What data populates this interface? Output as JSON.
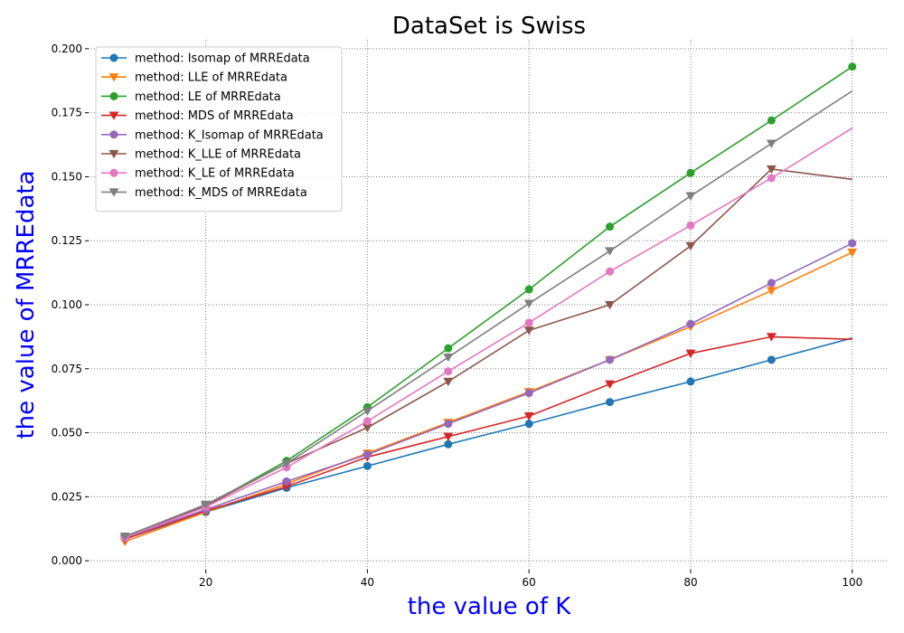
{
  "chart_data": {
    "type": "line",
    "title": "DataSet is Swiss",
    "xlabel": "the value of K",
    "ylabel": "the value of MRREdata",
    "label_color": "#0000ff",
    "x": [
      10,
      20,
      30,
      40,
      50,
      60,
      70,
      80,
      90,
      100
    ],
    "xlim": [
      5.5,
      104.5
    ],
    "ylim": [
      -0.0035,
      0.2035
    ],
    "xticks": [
      20,
      40,
      60,
      80,
      100
    ],
    "yticks": [
      0.0,
      0.025,
      0.05,
      0.075,
      0.1,
      0.125,
      0.15,
      0.175,
      0.2
    ],
    "ytick_decimals": 3,
    "grid": true,
    "legend_placement": "top-left",
    "series": [
      {
        "name": "method: Isomap of MRREdata",
        "marker": "circle",
        "color": "#1f77b4",
        "values": [
          0.0085,
          0.019,
          0.0285,
          0.037,
          0.0455,
          0.0535,
          0.062,
          0.07,
          0.0785,
          0.087
        ]
      },
      {
        "name": "method: LLE of MRREdata",
        "marker": "triangle-down",
        "color": "#ff7f0e",
        "values": [
          0.0075,
          0.019,
          0.03,
          0.042,
          0.054,
          0.066,
          0.0785,
          0.0915,
          0.1055,
          0.1205
        ]
      },
      {
        "name": "method: LE of MRREdata",
        "marker": "circle",
        "color": "#2ca02c",
        "values": [
          0.0095,
          0.0215,
          0.039,
          0.06,
          0.083,
          0.106,
          0.1305,
          0.1515,
          0.172,
          0.193
        ]
      },
      {
        "name": "method: MDS of MRREdata",
        "marker": "triangle-down",
        "color": "#d62728",
        "values": [
          0.0085,
          0.0195,
          0.029,
          0.0405,
          0.0485,
          0.0565,
          0.069,
          0.081,
          0.0875,
          0.0865
        ]
      },
      {
        "name": "method: K_Isomap of MRREdata",
        "marker": "circle",
        "color": "#9467bd",
        "values": [
          0.009,
          0.02,
          0.031,
          0.0415,
          0.0535,
          0.0655,
          0.0785,
          0.0925,
          0.1085,
          0.124
        ]
      },
      {
        "name": "method: K_LLE of MRREdata",
        "marker": "triangle-down",
        "color": "#8c564b",
        "values": [
          0.0095,
          0.0215,
          0.038,
          0.052,
          0.07,
          0.09,
          0.1,
          0.123,
          0.153,
          0.149
        ]
      },
      {
        "name": "method: K_LE of MRREdata",
        "marker": "circle",
        "color": "#e377c2",
        "values": [
          0.009,
          0.021,
          0.0365,
          0.0545,
          0.074,
          0.093,
          0.113,
          0.131,
          0.1495,
          0.169
        ]
      },
      {
        "name": "method: K_MDS of MRREdata",
        "marker": "triangle-down",
        "color": "#7f7f7f",
        "values": [
          0.0095,
          0.022,
          0.038,
          0.0585,
          0.0795,
          0.1005,
          0.121,
          0.1425,
          0.163,
          0.1835
        ]
      }
    ]
  }
}
